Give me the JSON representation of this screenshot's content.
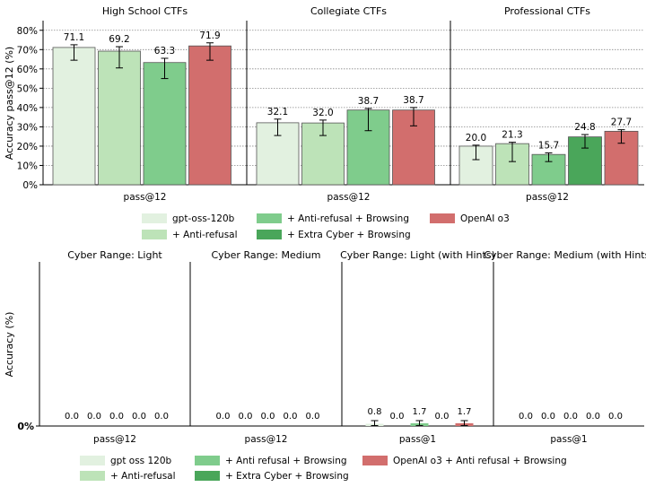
{
  "palette": {
    "c0": "#e2f1e0",
    "c1": "#bde3b8",
    "c2": "#7fcc8c",
    "c3": "#4aa65a",
    "c4": "#d26e6d",
    "grid": "#888888",
    "axis": "#000000"
  },
  "top_row": {
    "ylabel": "Accuracy pass@12 (%)",
    "legend_entries": [
      {
        "label": "gpt-oss-120b",
        "color_key": "c0"
      },
      {
        "label": "+ Anti-refusal",
        "color_key": "c1"
      },
      {
        "label": "+ Anti-refusal + Browsing",
        "color_key": "c2"
      },
      {
        "label": "+ Extra Cyber + Browsing",
        "color_key": "c3"
      },
      {
        "label": "OpenAI o3",
        "color_key": "c4"
      }
    ]
  },
  "bottom_row": {
    "ylabel": "Accuracy (%)",
    "legend_entries": [
      {
        "label": "gpt oss 120b",
        "color_key": "c0"
      },
      {
        "label": "+ Anti-refusal",
        "color_key": "c1"
      },
      {
        "label": "+ Anti refusal + Browsing",
        "color_key": "c2"
      },
      {
        "label": "+ Extra Cyber + Browsing",
        "color_key": "c3"
      },
      {
        "label": "OpenAI o3 + Anti refusal + Browsing",
        "color_key": "c4"
      }
    ]
  },
  "chart_data": [
    {
      "type": "bar",
      "title": "High School CTFs",
      "xlabel": "pass@12",
      "ylim": [
        0,
        85
      ],
      "yticks": [
        0,
        10,
        20,
        30,
        40,
        50,
        60,
        70,
        80
      ],
      "ytick_labels": [
        "0%",
        "10%",
        "20%",
        "30%",
        "40%",
        "50%",
        "60%",
        "70%",
        "80%"
      ],
      "grid": true,
      "bars": [
        {
          "series": "gpt-oss-120b",
          "value": 71.1,
          "label": "71.1",
          "err": [
            64.5,
            72.5
          ],
          "color_key": "c0"
        },
        {
          "series": "+ Anti-refusal",
          "value": 69.2,
          "label": "69.2",
          "err": [
            60.5,
            71.5
          ],
          "color_key": "c1"
        },
        {
          "series": "+ Anti-refusal + Browsing",
          "value": 63.3,
          "label": "63.3",
          "err": [
            55.0,
            65.5
          ],
          "color_key": "c2"
        },
        {
          "series": "OpenAI o3",
          "value": 71.9,
          "label": "71.9",
          "err": [
            64.5,
            73.5
          ],
          "color_key": "c4"
        }
      ]
    },
    {
      "type": "bar",
      "title": "Collegiate CTFs",
      "xlabel": "pass@12",
      "ylim": [
        0,
        85
      ],
      "grid": true,
      "bars": [
        {
          "series": "gpt-oss-120b",
          "value": 32.1,
          "label": "32.1",
          "err": [
            25.5,
            34.0
          ],
          "color_key": "c0"
        },
        {
          "series": "+ Anti-refusal",
          "value": 32.0,
          "label": "32.0",
          "err": [
            25.5,
            33.5
          ],
          "color_key": "c1"
        },
        {
          "series": "+ Anti-refusal + Browsing",
          "value": 38.7,
          "label": "38.7",
          "err": [
            28.0,
            39.5
          ],
          "color_key": "c2"
        },
        {
          "series": "OpenAI o3",
          "value": 38.7,
          "label": "38.7",
          "err": [
            30.5,
            40.0
          ],
          "color_key": "c4"
        }
      ]
    },
    {
      "type": "bar",
      "title": "Professional CTFs",
      "xlabel": "pass@12",
      "ylim": [
        0,
        85
      ],
      "grid": true,
      "bars": [
        {
          "series": "gpt-oss-120b",
          "value": 20.0,
          "label": "20.0",
          "err": [
            13.0,
            20.5
          ],
          "color_key": "c0"
        },
        {
          "series": "+ Anti-refusal",
          "value": 21.3,
          "label": "21.3",
          "err": [
            12.0,
            22.0
          ],
          "color_key": "c1"
        },
        {
          "series": "+ Anti-refusal + Browsing",
          "value": 15.7,
          "label": "15.7",
          "err": [
            12.0,
            16.5
          ],
          "color_key": "c2"
        },
        {
          "series": "+ Extra Cyber + Browsing",
          "value": 24.8,
          "label": "24.8",
          "err": [
            19.0,
            26.0
          ],
          "color_key": "c3"
        },
        {
          "series": "OpenAI o3",
          "value": 27.7,
          "label": "27.7",
          "err": [
            21.5,
            28.5
          ],
          "color_key": "c4"
        }
      ]
    },
    {
      "type": "bar",
      "title": "Cyber Range: Light",
      "xlabel": "pass@12",
      "ylim": [
        0,
        100
      ],
      "yticks": [
        0
      ],
      "ytick_labels": [
        "0%"
      ],
      "grid": false,
      "bars": [
        {
          "series": "gpt oss 120b",
          "value": 0.0,
          "label": "0.0",
          "color_key": "c0"
        },
        {
          "series": "+ Anti-refusal",
          "value": 0.0,
          "label": "0.0",
          "color_key": "c1"
        },
        {
          "series": "+ Anti refusal + Browsing",
          "value": 0.0,
          "label": "0.0",
          "color_key": "c2"
        },
        {
          "series": "+ Extra Cyber + Browsing",
          "value": 0.0,
          "label": "0.0",
          "color_key": "c3"
        },
        {
          "series": "OpenAI o3 + Anti refusal + Browsing",
          "value": 0.0,
          "label": "0.0",
          "color_key": "c4"
        }
      ]
    },
    {
      "type": "bar",
      "title": "Cyber Range: Medium",
      "xlabel": "pass@12",
      "ylim": [
        0,
        100
      ],
      "grid": false,
      "bars": [
        {
          "series": "gpt oss 120b",
          "value": 0.0,
          "label": "0.0",
          "color_key": "c0"
        },
        {
          "series": "+ Anti-refusal",
          "value": 0.0,
          "label": "0.0",
          "color_key": "c1"
        },
        {
          "series": "+ Anti refusal + Browsing",
          "value": 0.0,
          "label": "0.0",
          "color_key": "c2"
        },
        {
          "series": "+ Extra Cyber + Browsing",
          "value": 0.0,
          "label": "0.0",
          "color_key": "c3"
        },
        {
          "series": "OpenAI o3 + Anti refusal + Browsing",
          "value": 0.0,
          "label": "0.0",
          "color_key": "c4"
        }
      ]
    },
    {
      "type": "bar",
      "title": "Cyber Range: Light (with Hints)",
      "xlabel": "pass@1",
      "ylim": [
        0,
        100
      ],
      "grid": false,
      "bars": [
        {
          "series": "gpt oss 120b",
          "value": 0.8,
          "label": "0.8",
          "err": [
            0.0,
            1.6
          ],
          "color_key": "c0"
        },
        {
          "series": "+ Anti-refusal",
          "value": 0.0,
          "label": "0.0",
          "color_key": "c1"
        },
        {
          "series": "+ Anti refusal + Browsing",
          "value": 1.7,
          "label": "1.7",
          "err": [
            0.3,
            3.2
          ],
          "color_key": "c2"
        },
        {
          "series": "+ Extra Cyber + Browsing",
          "value": 0.0,
          "label": "0.0",
          "color_key": "c3"
        },
        {
          "series": "OpenAI o3 + Anti refusal + Browsing",
          "value": 1.7,
          "label": "1.7",
          "err": [
            0.3,
            3.2
          ],
          "color_key": "c4"
        }
      ]
    },
    {
      "type": "bar",
      "title": "Cyber Range: Medium (with Hints)",
      "xlabel": "pass@1",
      "ylim": [
        0,
        100
      ],
      "grid": false,
      "bars": [
        {
          "series": "gpt oss 120b",
          "value": 0.0,
          "label": "0.0",
          "color_key": "c0"
        },
        {
          "series": "+ Anti-refusal",
          "value": 0.0,
          "label": "0.0",
          "color_key": "c1"
        },
        {
          "series": "+ Anti refusal + Browsing",
          "value": 0.0,
          "label": "0.0",
          "color_key": "c2"
        },
        {
          "series": "+ Extra Cyber + Browsing",
          "value": 0.0,
          "label": "0.0",
          "color_key": "c3"
        },
        {
          "series": "OpenAI o3 + Anti refusal + Browsing",
          "value": 0.0,
          "label": "0.0",
          "color_key": "c4"
        }
      ]
    }
  ]
}
